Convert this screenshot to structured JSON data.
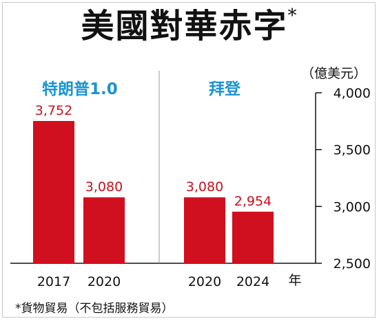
{
  "title": "美國對華赤字",
  "title_mark": "*",
  "unit": "（億美元）",
  "groups": [
    "特朗普1.0",
    "拜登"
  ],
  "x_unit": "年",
  "footnote": "*貨物貿易（不包括服務貿易）",
  "colors": {
    "bar": "#d0101e",
    "label": "#c8101e",
    "group": "#1b93d1"
  },
  "chart_data": {
    "type": "bar",
    "title": "美國對華赤字",
    "ylabel": "億美元",
    "xlabel": "年",
    "ylim": [
      2500,
      4000
    ],
    "yticks": [
      2500,
      3000,
      3500,
      4000
    ],
    "ytick_labels": [
      "2,500",
      "3,000",
      "3,500",
      "4,000"
    ],
    "categories": [
      "2017",
      "2020",
      "2020",
      "2024"
    ],
    "groups": [
      {
        "name": "特朗普1.0",
        "categories": [
          "2017",
          "2020"
        ],
        "values": [
          3752,
          3080
        ],
        "labels": [
          "3,752",
          "3,080"
        ]
      },
      {
        "name": "拜登",
        "categories": [
          "2020",
          "2024"
        ],
        "values": [
          3080,
          2954
        ],
        "labels": [
          "3,080",
          "2,954"
        ]
      }
    ],
    "values": [
      3752,
      3080,
      3080,
      2954
    ],
    "data_labels": [
      "3,752",
      "3,080",
      "3,080",
      "2,954"
    ],
    "axis_position": "right"
  }
}
